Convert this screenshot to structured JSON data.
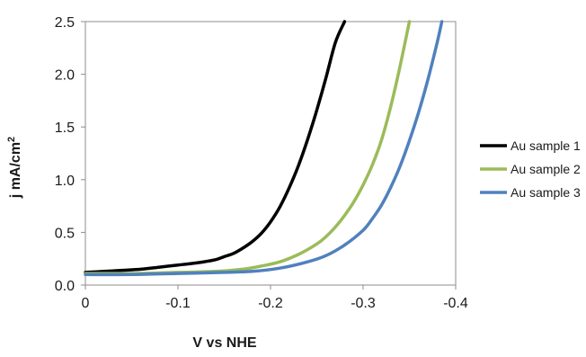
{
  "chart_data": {
    "type": "line",
    "title": "",
    "xlabel": "V vs NHE",
    "ylabel_main": "j mA/cm",
    "ylabel_sup": "2",
    "xlim": [
      0,
      -0.4
    ],
    "ylim": [
      0,
      2.5
    ],
    "x_ticks": [
      0,
      -0.1,
      -0.2,
      -0.3,
      -0.4
    ],
    "x_tick_labels": [
      "0",
      "-0.1",
      "-0.2",
      "-0.3",
      "-0.4"
    ],
    "y_ticks": [
      0,
      0.5,
      1.0,
      1.5,
      2.0,
      2.5
    ],
    "y_tick_labels": [
      "0.0",
      "0.5",
      "1.0",
      "1.5",
      "2.0",
      "2.5"
    ],
    "grid": false,
    "legend_position": "right",
    "series": [
      {
        "name": "Au sample 1",
        "color": "#000000",
        "x": [
          0,
          -0.02,
          -0.04,
          -0.06,
          -0.08,
          -0.1,
          -0.12,
          -0.14,
          -0.15,
          -0.16,
          -0.17,
          -0.18,
          -0.19,
          -0.2,
          -0.21,
          -0.22,
          -0.23,
          -0.24,
          -0.25,
          -0.26,
          -0.27,
          -0.28
        ],
        "y": [
          0.12,
          0.13,
          0.14,
          0.15,
          0.17,
          0.19,
          0.21,
          0.24,
          0.27,
          0.3,
          0.35,
          0.41,
          0.49,
          0.6,
          0.74,
          0.92,
          1.13,
          1.38,
          1.66,
          1.97,
          2.3,
          2.5
        ]
      },
      {
        "name": "Au sample 2",
        "color": "#9bbb59",
        "x": [
          0,
          -0.05,
          -0.1,
          -0.14,
          -0.17,
          -0.19,
          -0.21,
          -0.23,
          -0.25,
          -0.26,
          -0.27,
          -0.28,
          -0.29,
          -0.3,
          -0.31,
          -0.32,
          -0.33,
          -0.34,
          -0.35
        ],
        "y": [
          0.11,
          0.11,
          0.12,
          0.13,
          0.15,
          0.18,
          0.22,
          0.29,
          0.39,
          0.46,
          0.55,
          0.66,
          0.79,
          0.95,
          1.14,
          1.38,
          1.7,
          2.08,
          2.5
        ]
      },
      {
        "name": "Au sample 3",
        "color": "#4f81bd",
        "x": [
          0,
          -0.05,
          -0.1,
          -0.15,
          -0.18,
          -0.21,
          -0.24,
          -0.26,
          -0.28,
          -0.3,
          -0.31,
          -0.32,
          -0.33,
          -0.34,
          -0.35,
          -0.36,
          -0.37,
          -0.38,
          -0.385
        ],
        "y": [
          0.1,
          0.1,
          0.11,
          0.12,
          0.13,
          0.16,
          0.22,
          0.28,
          0.38,
          0.52,
          0.63,
          0.76,
          0.93,
          1.13,
          1.37,
          1.64,
          1.95,
          2.3,
          2.5
        ]
      }
    ]
  }
}
